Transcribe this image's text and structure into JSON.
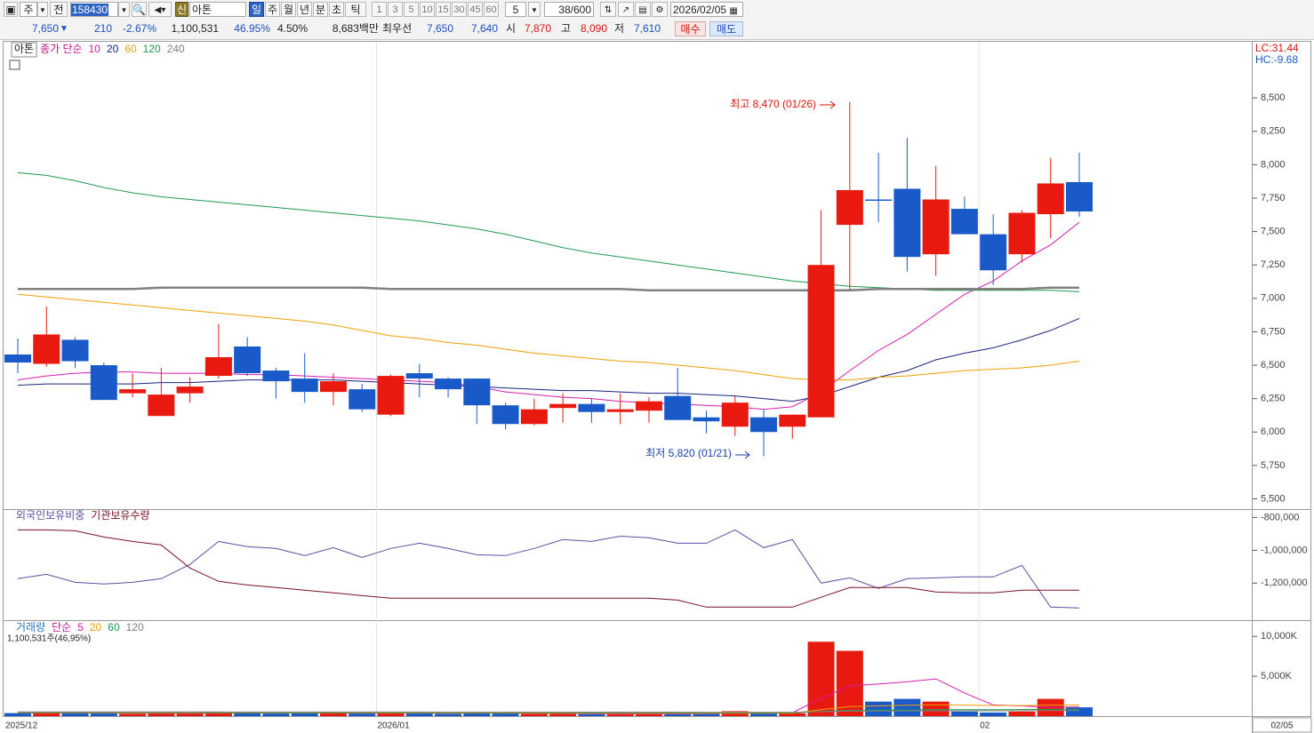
{
  "toolbar": {
    "market": "주",
    "prev": "전",
    "code": "158430",
    "badge": "신",
    "name": "아톤",
    "periods": [
      "일",
      "주",
      "월",
      "년",
      "분",
      "초",
      "틱"
    ],
    "intervals": [
      "1",
      "3",
      "5",
      "10",
      "15",
      "30",
      "45",
      "60"
    ],
    "interval_input": "5",
    "count": "38",
    "count_max": "/600",
    "date": "2026/02/05"
  },
  "quote": {
    "price": "7,650",
    "direction": "▼",
    "change": "210",
    "change_rate": "-2.67%",
    "volume": "1,100,531",
    "volume_rate": "46.95%",
    "turnover": "4.50%",
    "amount": "8,683백만",
    "best_label": "최우선",
    "ask": "7,650",
    "bid": "7,640",
    "open_label": "시",
    "open": "7,870",
    "high_label": "고",
    "high": "8,090",
    "low_label": "저",
    "low": "7,610",
    "buy": "매수",
    "sell": "매도"
  },
  "x_cursor_label": "02/05",
  "chart_data": [
    {
      "type": "candlestick",
      "title": "아톤",
      "legend_label": "종가 단순",
      "categories": [
        "2025/12",
        null,
        null,
        null,
        null,
        null,
        null,
        null,
        null,
        null,
        null,
        null,
        null,
        "2026/01",
        null,
        null,
        null,
        null,
        null,
        null,
        null,
        null,
        null,
        null,
        null,
        null,
        null,
        null,
        null,
        null,
        null,
        null,
        null,
        null,
        "02",
        null,
        null,
        null
      ],
      "open": [
        6580,
        6510,
        6690,
        6500,
        6290,
        6120,
        6290,
        6420,
        6640,
        6460,
        6400,
        6300,
        6320,
        6130,
        6440,
        6400,
        6400,
        6200,
        6060,
        6180,
        6210,
        6150,
        6160,
        6270,
        6110,
        6040,
        6110,
        6040,
        6110,
        7550,
        7740,
        7820,
        7330,
        7670,
        7480,
        7330,
        7630,
        7870
      ],
      "high": [
        6700,
        6940,
        6710,
        6520,
        6440,
        6480,
        6410,
        6810,
        6710,
        6480,
        6590,
        6440,
        6360,
        6430,
        6510,
        6410,
        6400,
        6220,
        6250,
        6290,
        6250,
        6290,
        6260,
        6480,
        6160,
        6270,
        6170,
        6130,
        7660,
        8470,
        8090,
        8200,
        7990,
        7760,
        7630,
        7660,
        8050,
        8090
      ],
      "low": [
        6440,
        6490,
        6480,
        6240,
        6260,
        6120,
        6220,
        6400,
        6420,
        6250,
        6220,
        6200,
        6150,
        6120,
        6260,
        6260,
        6060,
        6020,
        6050,
        6070,
        6070,
        6060,
        6070,
        6090,
        5990,
        5970,
        5820,
        5950,
        6110,
        7060,
        7570,
        7200,
        7170,
        7480,
        7100,
        7270,
        7450,
        7610
      ],
      "close": [
        6520,
        6730,
        6530,
        6240,
        6320,
        6280,
        6340,
        6560,
        6440,
        6380,
        6300,
        6380,
        6170,
        6420,
        6400,
        6320,
        6200,
        6060,
        6170,
        6210,
        6150,
        6170,
        6230,
        6090,
        6080,
        6220,
        6000,
        6130,
        7250,
        7810,
        7730,
        7310,
        7740,
        7480,
        7210,
        7640,
        7860,
        7650
      ],
      "up_color": "#e8190e",
      "down_color": "#1a5ac8",
      "series": [
        {
          "name": "10",
          "color": "#d81bb0",
          "values": [
            6390,
            6420,
            6440,
            6450,
            6450,
            6440,
            6440,
            6440,
            6430,
            6430,
            6420,
            6410,
            6400,
            6390,
            6380,
            6370,
            6340,
            6300,
            6280,
            6260,
            6250,
            6230,
            6220,
            6210,
            6200,
            6190,
            6170,
            6190,
            6300,
            6460,
            6610,
            6730,
            6880,
            7030,
            7130,
            7280,
            7400,
            7570
          ]
        },
        {
          "name": "20",
          "color": "#1a237e",
          "values": [
            6350,
            6360,
            6360,
            6360,
            6360,
            6370,
            6370,
            6380,
            6390,
            6390,
            6390,
            6390,
            6380,
            6370,
            6360,
            6350,
            6340,
            6330,
            6320,
            6310,
            6310,
            6300,
            6290,
            6290,
            6280,
            6270,
            6250,
            6230,
            6270,
            6340,
            6410,
            6460,
            6540,
            6590,
            6630,
            6690,
            6760,
            6850
          ]
        },
        {
          "name": "60",
          "color": "#f0a000",
          "values": [
            7030,
            7010,
            6990,
            6970,
            6950,
            6930,
            6910,
            6890,
            6870,
            6850,
            6830,
            6800,
            6760,
            6720,
            6700,
            6670,
            6650,
            6620,
            6590,
            6570,
            6550,
            6530,
            6520,
            6500,
            6480,
            6460,
            6430,
            6400,
            6390,
            6390,
            6410,
            6420,
            6440,
            6460,
            6470,
            6480,
            6500,
            6530
          ]
        },
        {
          "name": "120",
          "color": "#1e9a50",
          "values": [
            7940,
            7920,
            7880,
            7830,
            7790,
            7760,
            7740,
            7720,
            7700,
            7680,
            7660,
            7640,
            7620,
            7600,
            7580,
            7550,
            7520,
            7480,
            7430,
            7380,
            7340,
            7310,
            7280,
            7250,
            7220,
            7190,
            7160,
            7130,
            7110,
            7090,
            7080,
            7070,
            7060,
            7060,
            7060,
            7060,
            7060,
            7050
          ]
        },
        {
          "name": "240",
          "color": "#808080",
          "values": [
            7070,
            7070,
            7070,
            7070,
            7070,
            7080,
            7080,
            7080,
            7080,
            7080,
            7080,
            7080,
            7080,
            7070,
            7070,
            7070,
            7070,
            7070,
            7070,
            7070,
            7070,
            7070,
            7060,
            7060,
            7060,
            7060,
            7060,
            7060,
            7060,
            7060,
            7070,
            7070,
            7070,
            7070,
            7070,
            7070,
            7080,
            7080
          ]
        }
      ],
      "ylim": [
        5430,
        8920
      ],
      "yticks": [
        {
          "value": 5500,
          "label": "5,500"
        },
        {
          "value": 5750,
          "label": "5,750"
        },
        {
          "value": 6000,
          "label": "6,000"
        },
        {
          "value": 6250,
          "label": "6,250"
        },
        {
          "value": 6500,
          "label": "6,500"
        },
        {
          "value": 6750,
          "label": "6,750"
        },
        {
          "value": 7000,
          "label": "7,000"
        },
        {
          "value": 7250,
          "label": "7,250"
        },
        {
          "value": 7500,
          "label": "7,500"
        },
        {
          "value": 7750,
          "label": "7,750"
        },
        {
          "value": 8000,
          "label": "8,000"
        },
        {
          "value": 8250,
          "label": "8,250"
        },
        {
          "value": 8500,
          "label": "8,500"
        }
      ],
      "annotations": [
        {
          "text": "최고 8,470 (01/26)"
        },
        {
          "text": "최저 5,820 (01/21)"
        }
      ],
      "corner_labels": [
        "LC:31.44",
        "HC:-9.68"
      ]
    },
    {
      "type": "line",
      "series": [
        {
          "name": "외국인보유비중",
          "color": "#5a4fa0",
          "values": [
            -1173000,
            -1146000,
            -1195000,
            -1205000,
            -1195000,
            -1173000,
            -1086000,
            -946000,
            -978000,
            -989000,
            -1032000,
            -984000,
            -1043000,
            -989000,
            -957000,
            -989000,
            -1027000,
            -1032000,
            -989000,
            -935000,
            -946000,
            -914000,
            -924000,
            -957000,
            -957000,
            -876000,
            -984000,
            -935000,
            -1200000,
            -1168000,
            -1232000,
            -1173000,
            -1168000,
            -1162000,
            -1162000,
            -1092000,
            -1346000,
            -1351000
          ]
        },
        {
          "name": "기관보유수량",
          "color": "#7a1020",
          "values": [
            -876000,
            -876000,
            -881000,
            -919000,
            -946000,
            -968000,
            -1108000,
            -1189000,
            -1211000,
            -1227000,
            -1243000,
            -1259000,
            -1276000,
            -1292000,
            -1292000,
            -1292000,
            -1292000,
            -1292000,
            -1292000,
            -1292000,
            -1292000,
            -1292000,
            -1292000,
            -1303000,
            -1346000,
            -1346000,
            -1346000,
            -1346000,
            -1286000,
            -1227000,
            -1227000,
            -1227000,
            -1254000,
            -1259000,
            -1259000,
            -1243000,
            -1243000,
            -1243000
          ]
        }
      ],
      "ylim": [
        -1420000,
        -760000
      ],
      "yticks": [
        {
          "value": -800000,
          "label": "-800,000"
        },
        {
          "value": -1000000,
          "label": "-1,000,000"
        },
        {
          "value": -1200000,
          "label": "-1,200,000"
        }
      ]
    },
    {
      "type": "bar",
      "title": "거래량",
      "legend_label": "단순",
      "subtitle": "1,100,531주(46,95%)",
      "values": [
        380,
        420,
        400,
        330,
        300,
        350,
        380,
        520,
        450,
        330,
        340,
        400,
        330,
        480,
        360,
        300,
        420,
        330,
        300,
        280,
        260,
        250,
        300,
        340,
        360,
        620,
        420,
        380,
        9320,
        8180,
        1820,
        2160,
        1820,
        570,
        450,
        570,
        2160,
        1100.531
      ],
      "series": [
        {
          "name": "5",
          "color": "#d81bb0",
          "values": [
            400,
            400,
            400,
            390,
            370,
            360,
            350,
            380,
            400,
            410,
            410,
            400,
            370,
            380,
            380,
            370,
            380,
            380,
            350,
            330,
            300,
            280,
            280,
            290,
            300,
            360,
            410,
            420,
            2220,
            3780,
            4020,
            4300,
            4660,
            2910,
            1400,
            1280,
            1110,
            1150
          ]
        },
        {
          "name": "20",
          "color": "#f0a000",
          "values": [
            420,
            420,
            410,
            410,
            400,
            400,
            400,
            400,
            400,
            400,
            400,
            400,
            390,
            390,
            390,
            390,
            390,
            390,
            380,
            370,
            360,
            360,
            350,
            350,
            350,
            360,
            360,
            360,
            800,
            1200,
            1280,
            1360,
            1420,
            1380,
            1340,
            1320,
            1380,
            1400
          ]
        },
        {
          "name": "60",
          "color": "#1e9a50",
          "values": [
            460,
            460,
            460,
            460,
            460,
            460,
            460,
            450,
            450,
            450,
            450,
            450,
            450,
            440,
            440,
            440,
            440,
            440,
            440,
            430,
            430,
            430,
            430,
            430,
            430,
            430,
            430,
            430,
            580,
            720,
            750,
            780,
            800,
            810,
            810,
            820,
            850,
            860
          ]
        },
        {
          "name": "120",
          "color": "#808080",
          "values": [
            520,
            520,
            520,
            520,
            520,
            520,
            520,
            520,
            510,
            510,
            510,
            510,
            510,
            510,
            510,
            500,
            500,
            500,
            500,
            500,
            500,
            500,
            500,
            500,
            490,
            490,
            490,
            490,
            560,
            630,
            650,
            660,
            670,
            670,
            670,
            670,
            690,
            700
          ]
        }
      ],
      "ylim": [
        0,
        11800
      ],
      "yticks": [
        {
          "value": 5000,
          "label": "5,000K"
        },
        {
          "value": 10000,
          "label": "10,000K"
        }
      ]
    }
  ]
}
